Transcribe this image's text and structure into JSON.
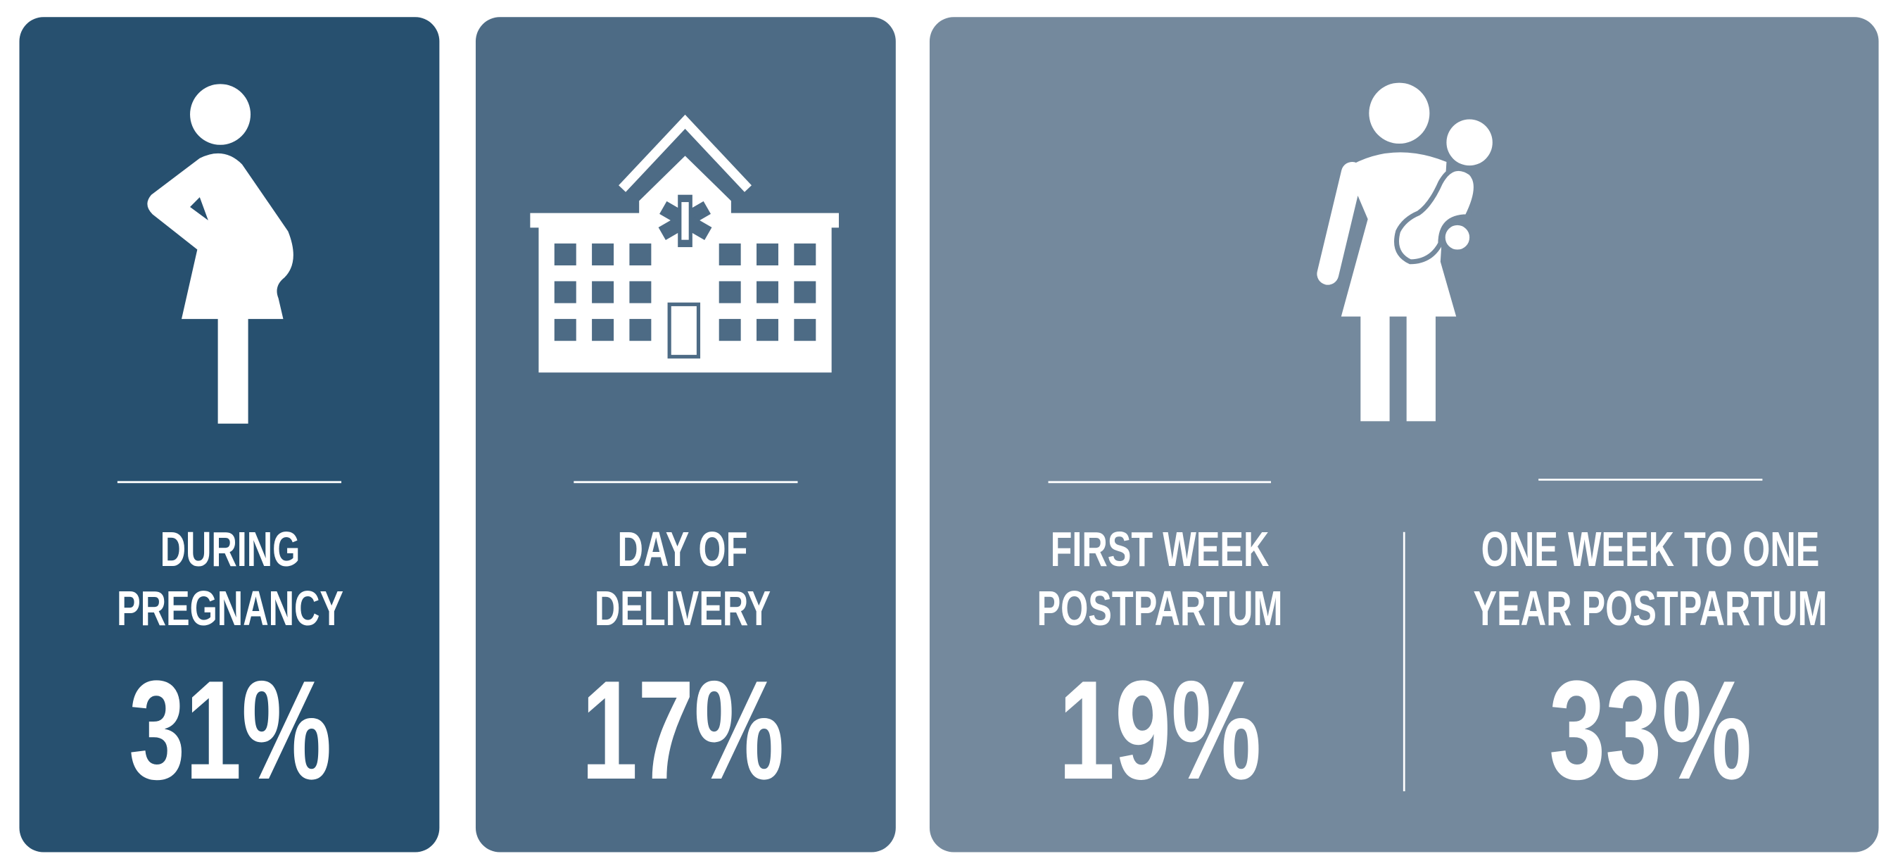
{
  "panels": [
    {
      "label": "DURING PREGNANCY",
      "value": "31%"
    },
    {
      "label": "DAY OF DELIVERY",
      "value": "17%"
    },
    {
      "label": "FIRST WEEK POSTPARTUM",
      "value": "19%"
    },
    {
      "label": "ONE WEEK TO ONE YEAR POSTPARTUM",
      "value": "33%"
    }
  ]
}
